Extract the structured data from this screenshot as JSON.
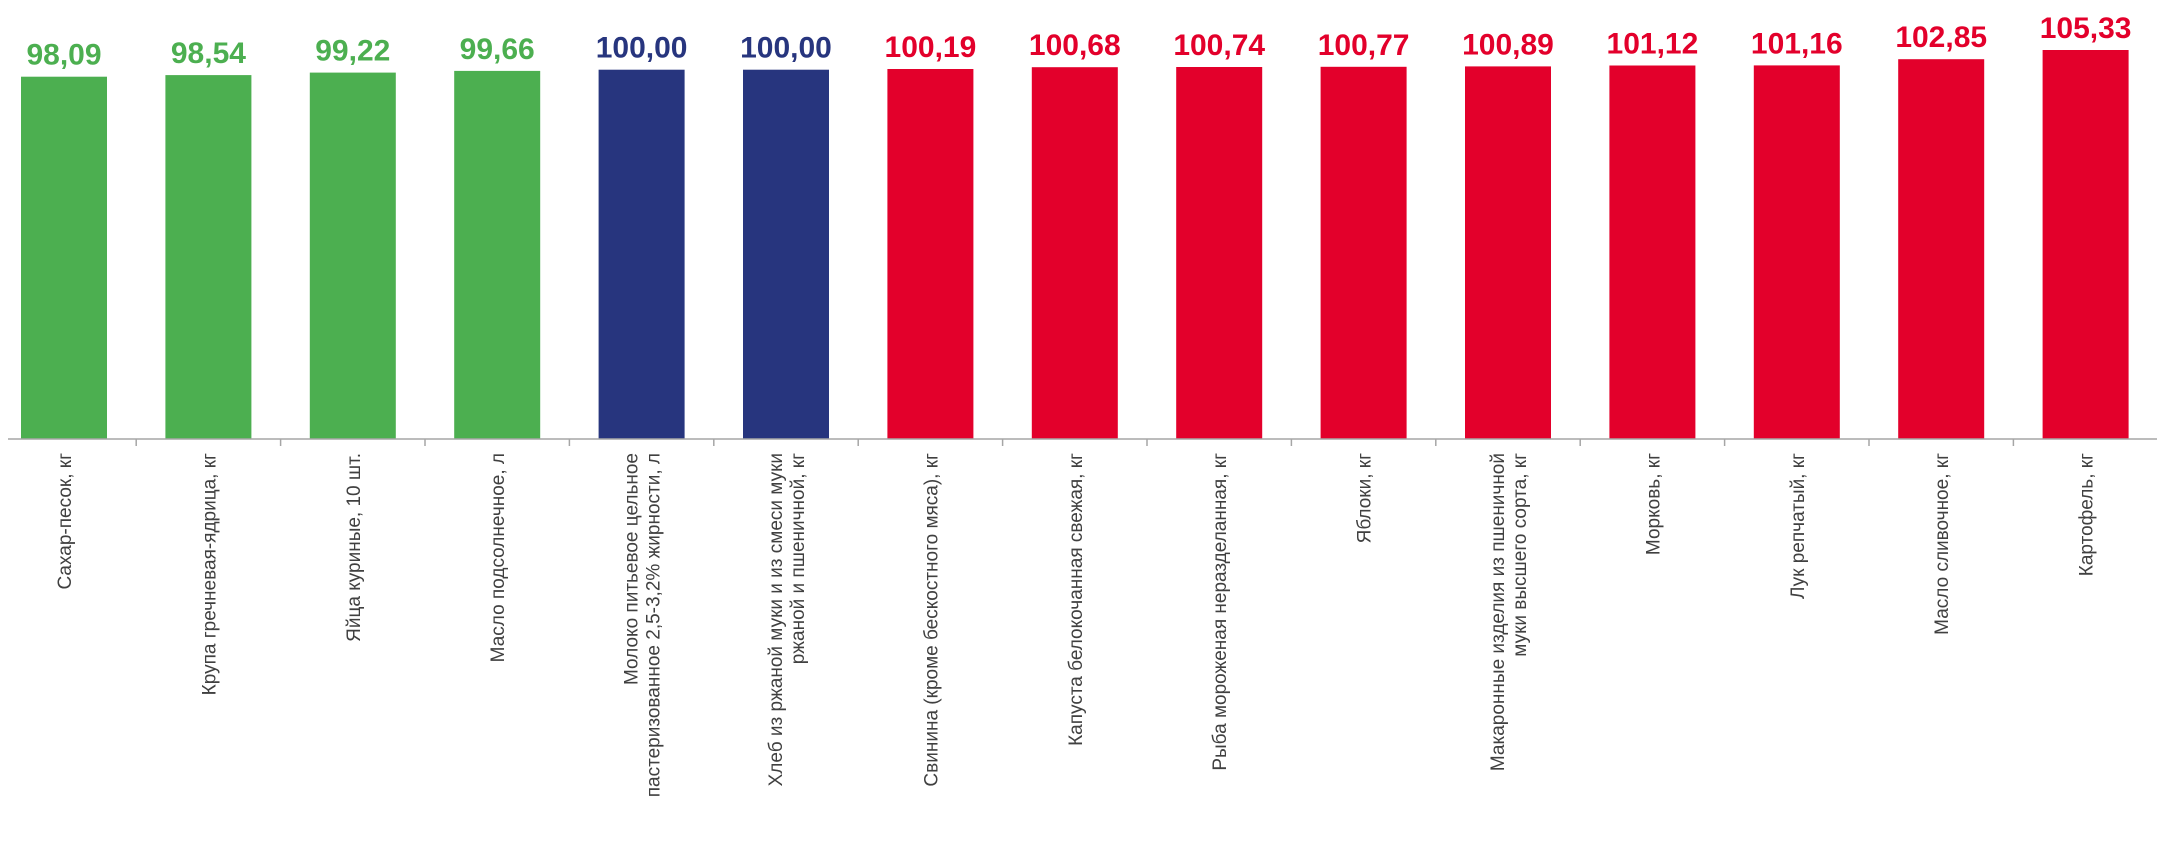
{
  "chart_data": {
    "type": "bar",
    "title": "",
    "xlabel": "",
    "ylabel": "",
    "ylim": [
      0,
      105.33
    ],
    "grid": false,
    "legend": "none",
    "categories": [
      [
        "Сахар-песок, кг"
      ],
      [
        "Крупа гречневая-ядрица, кг"
      ],
      [
        "Яйца куриные, 10 шт."
      ],
      [
        "Масло подсолнечное, л"
      ],
      [
        "Молоко питьевое цельное",
        "пастеризованное 2,5-3,2% жирности, л"
      ],
      [
        "Хлеб из ржаной муки и из смеси муки",
        "ржаной и пшеничной, кг"
      ],
      [
        "Свинина (кроме бескостного мяса), кг"
      ],
      [
        "Капуста белокочанная свежая, кг"
      ],
      [
        "Рыба мороженая неразделанная, кг"
      ],
      [
        "Яблоки, кг"
      ],
      [
        "Макаронные изделия из пшеничной",
        "муки высшего сорта, кг"
      ],
      [
        "Морковь, кг"
      ],
      [
        "Лук репчатый, кг"
      ],
      [
        "Масло сливочное, кг"
      ],
      [
        "Картофель, кг"
      ]
    ],
    "values": [
      98.09,
      98.54,
      99.22,
      99.66,
      100.0,
      100.0,
      100.19,
      100.68,
      100.74,
      100.77,
      100.89,
      101.12,
      101.16,
      102.85,
      105.33
    ],
    "value_labels": [
      "98,09",
      "98,54",
      "99,22",
      "99,66",
      "100,00",
      "100,00",
      "100,19",
      "100,68",
      "100,74",
      "100,77",
      "100,89",
      "101,12",
      "101,16",
      "102,85",
      "105,33"
    ],
    "colors": {
      "decrease": "#4caf50",
      "unchanged": "#27357e",
      "increase": "#e3002b",
      "axis": "#a6a6a6"
    }
  }
}
